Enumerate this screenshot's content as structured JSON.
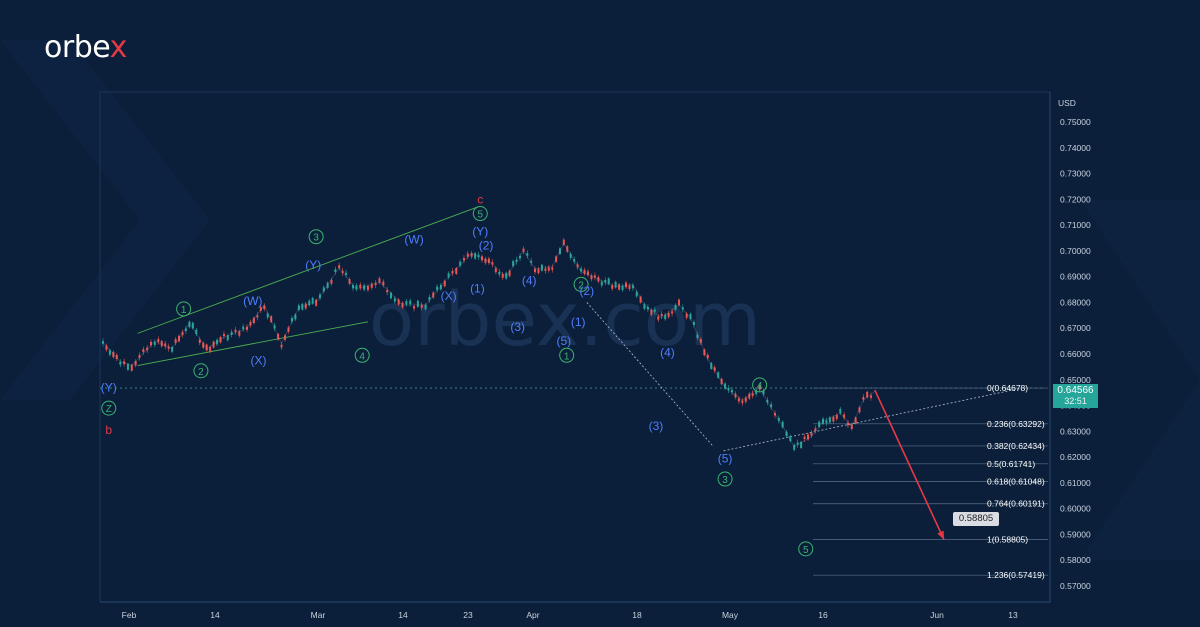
{
  "brand": {
    "logo_prefix": "orbe",
    "logo_accent": "x",
    "watermark": "orbex.com",
    "accent_color": "#e63946"
  },
  "axis": {
    "currency": "USD"
  },
  "current_price": {
    "value": "0.64566",
    "timer": "32:51",
    "color": "#26a69a"
  },
  "target_label": "0.58805",
  "chart_data": {
    "type": "line",
    "style": "candlestick-like price chart with Elliott wave labels",
    "y_ticks": [
      "0.75000",
      "0.74000",
      "0.73000",
      "0.72000",
      "0.71000",
      "0.70000",
      "0.69000",
      "0.68000",
      "0.67000",
      "0.66000",
      "0.65000",
      "0.64000",
      "0.63000",
      "0.62000",
      "0.61000",
      "0.60000",
      "0.59000",
      "0.58000",
      "0.57000"
    ],
    "x_ticks": [
      "Feb",
      "14",
      "Mar",
      "14",
      "23",
      "Apr",
      "18",
      "May",
      "16",
      "Jun",
      "13"
    ],
    "ylim": [
      0.567,
      0.755
    ],
    "price_path": [
      {
        "d": 0,
        "v": 0.6645
      },
      {
        "d": 3,
        "v": 0.657
      },
      {
        "d": 5,
        "v": 0.6555
      },
      {
        "d": 9,
        "v": 0.665
      },
      {
        "d": 12,
        "v": 0.662
      },
      {
        "d": 15,
        "v": 0.672
      },
      {
        "d": 18,
        "v": 0.662
      },
      {
        "d": 21,
        "v": 0.6665
      },
      {
        "d": 25,
        "v": 0.67
      },
      {
        "d": 28,
        "v": 0.679
      },
      {
        "d": 31,
        "v": 0.664
      },
      {
        "d": 34,
        "v": 0.678
      },
      {
        "d": 37,
        "v": 0.68
      },
      {
        "d": 41,
        "v": 0.6935
      },
      {
        "d": 44,
        "v": 0.685
      },
      {
        "d": 48,
        "v": 0.688
      },
      {
        "d": 52,
        "v": 0.679
      },
      {
        "d": 56,
        "v": 0.679
      },
      {
        "d": 60,
        "v": 0.69
      },
      {
        "d": 64,
        "v": 0.699
      },
      {
        "d": 67,
        "v": 0.696
      },
      {
        "d": 70,
        "v": 0.69
      },
      {
        "d": 73,
        "v": 0.7
      },
      {
        "d": 75,
        "v": 0.693
      },
      {
        "d": 78,
        "v": 0.694
      },
      {
        "d": 80,
        "v": 0.703
      },
      {
        "d": 83,
        "v": 0.692
      },
      {
        "d": 86,
        "v": 0.689
      },
      {
        "d": 89,
        "v": 0.686
      },
      {
        "d": 92,
        "v": 0.687
      },
      {
        "d": 94,
        "v": 0.679
      },
      {
        "d": 97,
        "v": 0.674
      },
      {
        "d": 100,
        "v": 0.679
      },
      {
        "d": 102,
        "v": 0.674
      },
      {
        "d": 105,
        "v": 0.658
      },
      {
        "d": 108,
        "v": 0.647
      },
      {
        "d": 111,
        "v": 0.642
      },
      {
        "d": 114,
        "v": 0.647
      },
      {
        "d": 116,
        "v": 0.639
      },
      {
        "d": 118,
        "v": 0.632
      },
      {
        "d": 120,
        "v": 0.624
      },
      {
        "d": 123,
        "v": 0.628
      },
      {
        "d": 125,
        "v": 0.634
      },
      {
        "d": 128,
        "v": 0.637
      },
      {
        "d": 130,
        "v": 0.632
      },
      {
        "d": 132,
        "v": 0.642
      },
      {
        "d": 134,
        "v": 0.6456
      }
    ],
    "fib_levels": [
      {
        "label": "0(0.64678)",
        "value": 0.64678
      },
      {
        "label": "0.236(0.63292)",
        "value": 0.63292
      },
      {
        "label": "0.382(0.62434)",
        "value": 0.62434
      },
      {
        "label": "0.5(0.61741)",
        "value": 0.61741
      },
      {
        "label": "0.618(0.61048)",
        "value": 0.61048
      },
      {
        "label": "0.764(0.60191)",
        "value": 0.60191
      },
      {
        "label": "1(0.58805)",
        "value": 0.58805
      },
      {
        "label": "1.236(0.57419)",
        "value": 0.57419
      }
    ],
    "wave_labels": [
      {
        "text": "(Y)",
        "d": 1,
        "v": 0.647,
        "color": "#4f7dff",
        "circle": false
      },
      {
        "text": "Z",
        "d": 1,
        "v": 0.639,
        "color": "#3cb371",
        "circle": true
      },
      {
        "text": "b",
        "d": 1,
        "v": 0.6305,
        "color": "#e63946",
        "circle": false
      },
      {
        "text": "1",
        "d": 14,
        "v": 0.6775,
        "color": "#3cb371",
        "circle": true
      },
      {
        "text": "2",
        "d": 17,
        "v": 0.6535,
        "color": "#3cb371",
        "circle": true
      },
      {
        "text": "(W)",
        "d": 26,
        "v": 0.6805,
        "color": "#4f7dff",
        "circle": false
      },
      {
        "text": "(X)",
        "d": 27,
        "v": 0.6575,
        "color": "#4f7dff",
        "circle": false
      },
      {
        "text": "3",
        "d": 37,
        "v": 0.7055,
        "color": "#3cb371",
        "circle": true
      },
      {
        "text": "(Y)",
        "d": 36.5,
        "v": 0.6945,
        "color": "#4f7dff",
        "circle": false
      },
      {
        "text": "4",
        "d": 45,
        "v": 0.6595,
        "color": "#3cb371",
        "circle": true
      },
      {
        "text": "(W)",
        "d": 54,
        "v": 0.7045,
        "color": "#4f7dff",
        "circle": false
      },
      {
        "text": "(X)",
        "d": 60,
        "v": 0.6825,
        "color": "#4f7dff",
        "circle": false
      },
      {
        "text": "c",
        "d": 65.5,
        "v": 0.72,
        "color": "#e63946",
        "circle": false
      },
      {
        "text": "5",
        "d": 65.5,
        "v": 0.7145,
        "color": "#3cb371",
        "circle": true
      },
      {
        "text": "(Y)",
        "d": 65.5,
        "v": 0.7075,
        "color": "#4f7dff",
        "circle": false
      },
      {
        "text": "(2)",
        "d": 66.5,
        "v": 0.702,
        "color": "#4f7dff",
        "circle": false
      },
      {
        "text": "(1)",
        "d": 65,
        "v": 0.6855,
        "color": "#4f7dff",
        "circle": false
      },
      {
        "text": "(4)",
        "d": 74,
        "v": 0.6885,
        "color": "#4f7dff",
        "circle": false
      },
      {
        "text": "(3)",
        "d": 72,
        "v": 0.6705,
        "color": "#4f7dff",
        "circle": false
      },
      {
        "text": "2",
        "d": 83,
        "v": 0.687,
        "color": "#3cb371",
        "circle": true
      },
      {
        "text": "(2)",
        "d": 84,
        "v": 0.6845,
        "color": "#4f7dff",
        "circle": false
      },
      {
        "text": "(1)",
        "d": 82.5,
        "v": 0.6725,
        "color": "#4f7dff",
        "circle": false
      },
      {
        "text": "(5)",
        "d": 80,
        "v": 0.665,
        "color": "#4f7dff",
        "circle": false
      },
      {
        "text": "1",
        "d": 80.5,
        "v": 0.6595,
        "color": "#3cb371",
        "circle": true
      },
      {
        "text": "(4)",
        "d": 98,
        "v": 0.6605,
        "color": "#4f7dff",
        "circle": false
      },
      {
        "text": "(3)",
        "d": 96,
        "v": 0.632,
        "color": "#4f7dff",
        "circle": false
      },
      {
        "text": "4",
        "d": 114,
        "v": 0.648,
        "color": "#3cb371",
        "circle": true
      },
      {
        "text": "(5)",
        "d": 108,
        "v": 0.6195,
        "color": "#4f7dff",
        "circle": false
      },
      {
        "text": "3",
        "d": 108,
        "v": 0.6115,
        "color": "#3cb371",
        "circle": true
      },
      {
        "text": "5",
        "d": 122,
        "v": 0.5844,
        "color": "#3cb371",
        "circle": true
      }
    ],
    "projection": {
      "from": {
        "d": 134,
        "v": 0.646
      },
      "to": {
        "d": 146,
        "v": 0.588
      },
      "color": "#e63946"
    },
    "trend_upper": [
      {
        "d": 6,
        "v": 0.668
      },
      {
        "d": 65,
        "v": 0.717
      }
    ],
    "trend_lower": [
      {
        "d": 6,
        "v": 0.6555
      },
      {
        "d": 46,
        "v": 0.6725
      }
    ],
    "dotted_channel": [
      {
        "d": 84,
        "v": 0.68
      },
      {
        "d": 106,
        "v": 0.624
      },
      {
        "d": 160,
        "v": 0.647
      }
    ],
    "horizontal_dotted": {
      "value": 0.64678
    }
  }
}
